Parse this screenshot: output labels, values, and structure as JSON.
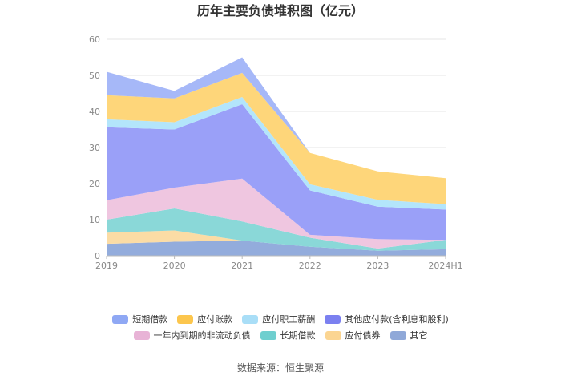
{
  "title": "历年主要负债堆积图（亿元）",
  "source": "数据来源：恒生聚源",
  "chart_data": {
    "type": "area",
    "stacked": true,
    "title": "历年主要负债堆积图（亿元）",
    "categories": [
      "2019",
      "2020",
      "2021",
      "2022",
      "2023",
      "2024H1"
    ],
    "ylim": [
      0,
      60
    ],
    "yticks": [
      0,
      10,
      20,
      30,
      40,
      50,
      60
    ],
    "grid": true,
    "legend_position": "bottom",
    "series": [
      {
        "name": "其它",
        "color": "#93acdc",
        "values": [
          3.3,
          3.9,
          4.2,
          2.5,
          1.4,
          1.8
        ]
      },
      {
        "name": "应付债券",
        "color": "#fbdca5",
        "values": [
          3.1,
          3.1,
          0.0,
          0.0,
          0.0,
          0.0
        ]
      },
      {
        "name": "长期借款",
        "color": "#8ad8d8",
        "values": [
          3.6,
          6.1,
          5.3,
          2.5,
          0.6,
          2.6
        ]
      },
      {
        "name": "一年内到期的非流动负债",
        "color": "#efc6e0",
        "values": [
          5.4,
          5.8,
          11.9,
          0.8,
          2.6,
          0.0
        ]
      },
      {
        "name": "其他应付款(含利息和股利)",
        "color": "#9aa0f8",
        "values": [
          20.2,
          16.1,
          20.6,
          12.3,
          9.0,
          8.4
        ]
      },
      {
        "name": "应付职工薪酬",
        "color": "#b3e5fb",
        "values": [
          2.2,
          2.0,
          2.0,
          1.7,
          1.9,
          1.5
        ]
      },
      {
        "name": "应付账款",
        "color": "#fed67a",
        "values": [
          6.7,
          6.6,
          6.7,
          8.7,
          7.9,
          7.2
        ]
      },
      {
        "name": "短期借款",
        "color": "#a6b8f8",
        "values": [
          6.5,
          2.1,
          4.3,
          0.0,
          0.0,
          0.0
        ]
      }
    ]
  },
  "legend": {
    "row1": [
      {
        "label": "短期借款",
        "color": "#8fa8f4"
      },
      {
        "label": "应付账款",
        "color": "#fcc64d"
      },
      {
        "label": "应付职工薪酬",
        "color": "#a9def7"
      },
      {
        "label": "其他应付款(含利息和股利)",
        "color": "#7b80f0"
      }
    ],
    "row2": [
      {
        "label": "一年内到期的非流动负债",
        "color": "#e8b3d6"
      },
      {
        "label": "长期借款",
        "color": "#6fcfcf"
      },
      {
        "label": "应付债券",
        "color": "#fbd592"
      },
      {
        "label": "其它",
        "color": "#8fa8d8"
      }
    ]
  }
}
